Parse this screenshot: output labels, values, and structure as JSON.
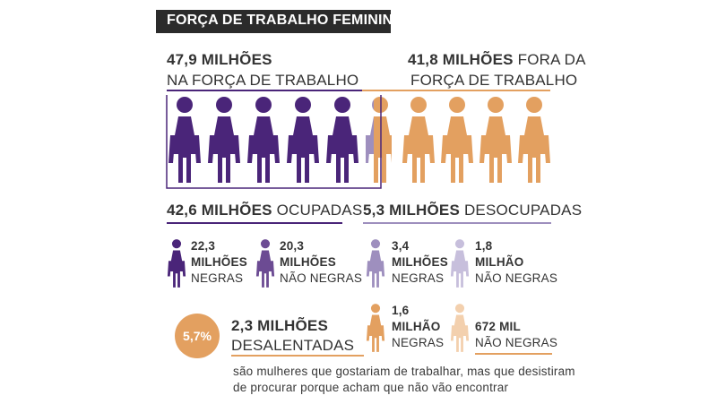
{
  "title": "FORÇA DE TRABALHO FEMININA",
  "colors": {
    "purple": "#4a2579",
    "mid_purple": "#6c4b93",
    "lavender": "#9e8fbe",
    "light_lavender": "#c7bfdc",
    "orange": "#e3a060",
    "light_orange": "#f3d0ae",
    "title_bg": "#2b2b2b"
  },
  "in_workforce": {
    "value": "47,9 MILHÕES",
    "label": "NA FORÇA DE TRABALHO"
  },
  "out_workforce": {
    "value": "41,8 MILHÕES",
    "label_1": "FORA DA",
    "label_2": "FORÇA DE TRABALHO"
  },
  "occupied": {
    "value": "42,6 MILHÕES",
    "label": "OCUPADAS"
  },
  "unoccupied": {
    "value": "5,3 MILHÕES",
    "label": "DESOCUPADAS"
  },
  "groups": [
    {
      "value": "22,3",
      "unit": "MILHÕES",
      "label": "NEGRAS",
      "icon": "woman-icon",
      "color": "#4a2579"
    },
    {
      "value": "20,3",
      "unit": "MILHÕES",
      "label": "NÃO NEGRAS",
      "icon": "woman-icon",
      "color": "#6c4b93"
    },
    {
      "value": "3,4",
      "unit": "MILHÕES",
      "label": "NEGRAS",
      "icon": "woman-icon",
      "color": "#9e8fbe"
    },
    {
      "value": "1,8",
      "unit": "MILHÃO",
      "label": "NÃO NEGRAS",
      "icon": "woman-icon",
      "color": "#c7bfdc"
    },
    {
      "value": "1,6",
      "unit": "MILHÃO",
      "label": "NEGRAS",
      "icon": "woman-icon",
      "color": "#e3a060"
    },
    {
      "value": "672 MIL",
      "unit": "",
      "label": "NÃO NEGRAS",
      "icon": "woman-icon",
      "color": "#f3d0ae"
    }
  ],
  "discouraged": {
    "percent": "5,7%",
    "value": "2,3 MILHÕES",
    "label": "DESALENTADAS",
    "note_1": "são mulheres que gostariam de trabalhar, mas que desistiram",
    "note_2": "de procurar porque acham que não vão encontrar"
  }
}
